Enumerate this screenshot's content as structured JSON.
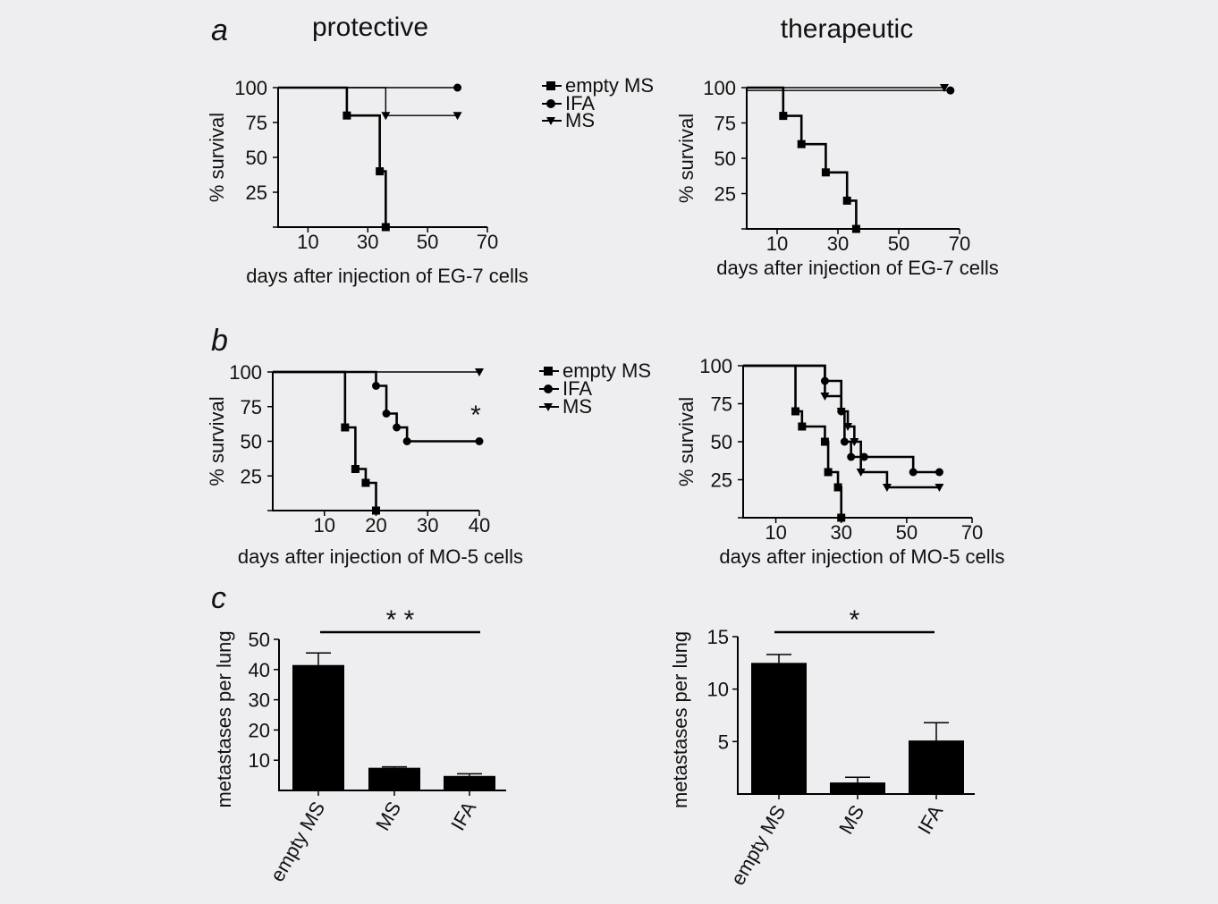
{
  "headings": {
    "left": "protective",
    "right": "therapeutic"
  },
  "panel_labels": {
    "a": "a",
    "b": "b",
    "c": "c"
  },
  "legend_a": [
    "empty MS",
    "IFA",
    "MS"
  ],
  "legend_b": [
    "empty MS",
    "IFA",
    "MS"
  ],
  "chart_data": [
    {
      "id": "a_protective",
      "type": "line",
      "subtype": "kaplan-meier",
      "xlabel": "days after injection of EG-7 cells",
      "ylabel": "% survival",
      "xticks": [
        10,
        30,
        50,
        70
      ],
      "yticks": [
        25,
        50,
        75,
        100
      ],
      "xlim": [
        0,
        70
      ],
      "ylim": [
        0,
        100
      ],
      "series": [
        {
          "name": "empty MS",
          "marker": "square",
          "x": [
            0,
            23,
            34,
            36
          ],
          "y": [
            100,
            80,
            40,
            0
          ]
        },
        {
          "name": "IFA",
          "marker": "circle",
          "x": [
            0,
            60
          ],
          "y": [
            100,
            100
          ]
        },
        {
          "name": "MS",
          "marker": "triangle",
          "x": [
            0,
            36,
            60
          ],
          "y": [
            100,
            80,
            80
          ]
        }
      ]
    },
    {
      "id": "a_therapeutic",
      "type": "line",
      "subtype": "kaplan-meier",
      "xlabel": "days after injection of EG-7 cells",
      "ylabel": "% survival",
      "xticks": [
        10,
        30,
        50,
        70
      ],
      "yticks": [
        25,
        50,
        75,
        100
      ],
      "xlim": [
        0,
        70
      ],
      "ylim": [
        0,
        100
      ],
      "series": [
        {
          "name": "empty MS",
          "marker": "square",
          "x": [
            0,
            12,
            18,
            26,
            33,
            36
          ],
          "y": [
            100,
            80,
            60,
            40,
            20,
            0
          ]
        },
        {
          "name": "IFA",
          "marker": "circle",
          "x": [
            0,
            67
          ],
          "y": [
            98,
            98
          ]
        },
        {
          "name": "MS",
          "marker": "triangle",
          "x": [
            0,
            65
          ],
          "y": [
            100,
            100
          ]
        }
      ]
    },
    {
      "id": "b_protective",
      "type": "line",
      "subtype": "kaplan-meier",
      "xlabel": "days after injection of MO-5 cells",
      "ylabel": "% survival",
      "xticks": [
        10,
        20,
        30,
        40
      ],
      "yticks": [
        25,
        50,
        75,
        100
      ],
      "xlim": [
        0,
        40
      ],
      "ylim": [
        0,
        100
      ],
      "annotation": "*",
      "series": [
        {
          "name": "empty MS",
          "marker": "square",
          "x": [
            0,
            14,
            16,
            18,
            20
          ],
          "y": [
            100,
            60,
            30,
            20,
            0
          ]
        },
        {
          "name": "IFA",
          "marker": "circle",
          "x": [
            0,
            20,
            22,
            24,
            26,
            40
          ],
          "y": [
            100,
            90,
            70,
            60,
            50,
            50
          ]
        },
        {
          "name": "MS",
          "marker": "triangle",
          "x": [
            0,
            40
          ],
          "y": [
            100,
            100
          ]
        }
      ]
    },
    {
      "id": "b_therapeutic",
      "type": "line",
      "subtype": "kaplan-meier",
      "xlabel": "days after injection of MO-5 cells",
      "ylabel": "% survival",
      "xticks": [
        10,
        30,
        50,
        70
      ],
      "yticks": [
        25,
        50,
        75,
        100
      ],
      "xlim": [
        0,
        70
      ],
      "ylim": [
        0,
        100
      ],
      "series": [
        {
          "name": "empty MS",
          "marker": "square",
          "x": [
            0,
            16,
            18,
            25,
            26,
            29,
            30
          ],
          "y": [
            100,
            70,
            60,
            50,
            30,
            20,
            0
          ]
        },
        {
          "name": "IFA",
          "marker": "circle",
          "x": [
            0,
            25,
            30,
            31,
            33,
            37,
            52,
            60
          ],
          "y": [
            100,
            90,
            70,
            50,
            40,
            40,
            30,
            30
          ]
        },
        {
          "name": "MS",
          "marker": "triangle",
          "x": [
            0,
            25,
            30,
            32,
            34,
            36,
            44,
            60
          ],
          "y": [
            100,
            80,
            70,
            60,
            50,
            30,
            20,
            20
          ]
        }
      ]
    },
    {
      "id": "c_protective",
      "type": "bar",
      "ylabel": "metastases per lung",
      "categories": [
        "empty MS",
        "MS",
        "IFA"
      ],
      "values": [
        41.5,
        7.5,
        4.8
      ],
      "errors": [
        4,
        0.3,
        0.7
      ],
      "yticks": [
        10,
        20,
        30,
        40,
        50
      ],
      "ylim": [
        0,
        50
      ],
      "significance": "* *"
    },
    {
      "id": "c_therapeutic",
      "type": "bar",
      "ylabel": "metastases per lung",
      "categories": [
        "empty MS",
        "MS",
        "IFA"
      ],
      "values": [
        12.5,
        1.1,
        5.1
      ],
      "errors": [
        0.8,
        0.5,
        1.7
      ],
      "yticks": [
        5,
        10,
        15
      ],
      "ylim": [
        0,
        15
      ],
      "significance": "*"
    }
  ]
}
